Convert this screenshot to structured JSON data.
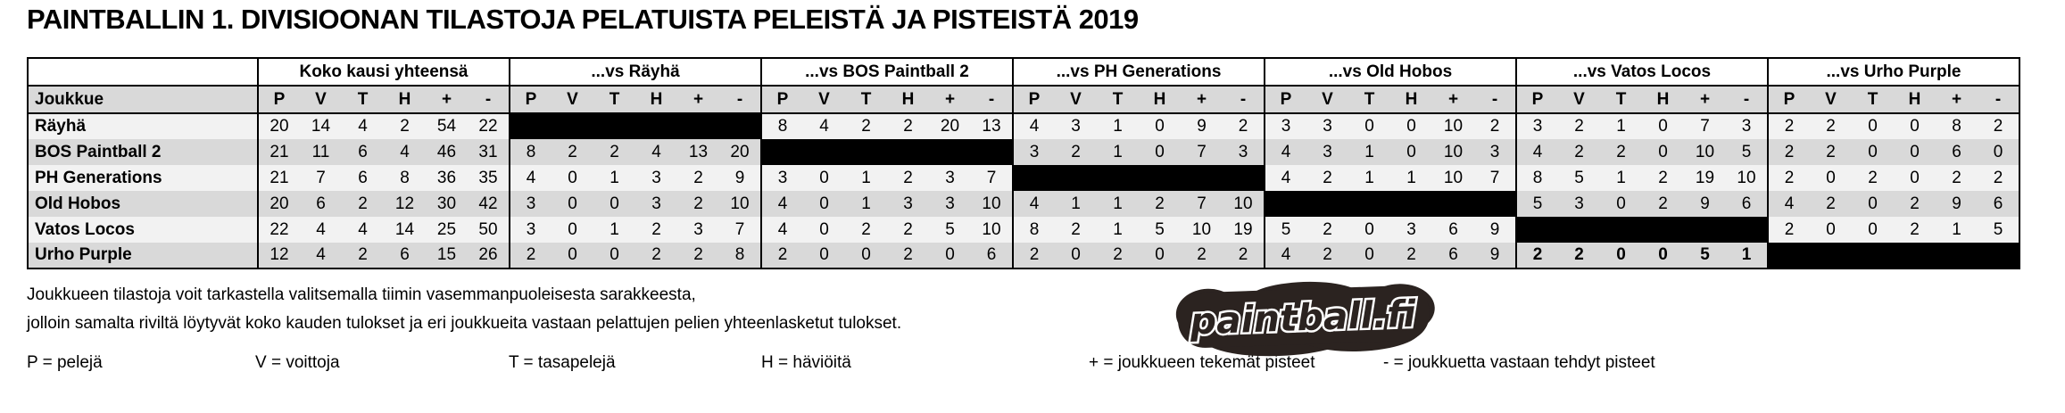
{
  "title": "PAINTBALLIN 1. DIVISIOONAN TILASTOJA PELATUISTA PELEISTÄ JA PISTEISTÄ 2019",
  "table": {
    "team_col_header": "Joukkue",
    "groups": [
      "Koko kausi yhteensä",
      "...vs Räyhä",
      "...vs BOS Paintball 2",
      "...vs PH Generations",
      "...vs Old Hobos",
      "...vs Vatos Locos",
      "...vs Urho Purple"
    ],
    "stat_cols": [
      "P",
      "V",
      "T",
      "H",
      "+",
      "-"
    ],
    "rows": [
      {
        "team": "Räyhä",
        "stats": [
          [
            20,
            14,
            4,
            2,
            54,
            22
          ],
          null,
          [
            8,
            4,
            2,
            2,
            20,
            13
          ],
          [
            4,
            3,
            1,
            0,
            9,
            2
          ],
          [
            3,
            3,
            0,
            0,
            10,
            2
          ],
          [
            3,
            2,
            1,
            0,
            7,
            3
          ],
          [
            2,
            2,
            0,
            0,
            8,
            2
          ]
        ],
        "bold_groups": []
      },
      {
        "team": "BOS Paintball 2",
        "stats": [
          [
            21,
            11,
            6,
            4,
            46,
            31
          ],
          [
            8,
            2,
            2,
            4,
            13,
            20
          ],
          null,
          [
            3,
            2,
            1,
            0,
            7,
            3
          ],
          [
            4,
            3,
            1,
            0,
            10,
            3
          ],
          [
            4,
            2,
            2,
            0,
            10,
            5
          ],
          [
            2,
            2,
            0,
            0,
            6,
            0
          ]
        ],
        "bold_groups": []
      },
      {
        "team": "PH Generations",
        "stats": [
          [
            21,
            7,
            6,
            8,
            36,
            35
          ],
          [
            4,
            0,
            1,
            3,
            2,
            9
          ],
          [
            3,
            0,
            1,
            2,
            3,
            7
          ],
          null,
          [
            4,
            2,
            1,
            1,
            10,
            7
          ],
          [
            8,
            5,
            1,
            2,
            19,
            10
          ],
          [
            2,
            0,
            2,
            0,
            2,
            2
          ]
        ],
        "bold_groups": []
      },
      {
        "team": "Old Hobos",
        "stats": [
          [
            20,
            6,
            2,
            12,
            30,
            42
          ],
          [
            3,
            0,
            0,
            3,
            2,
            10
          ],
          [
            4,
            0,
            1,
            3,
            3,
            10
          ],
          [
            4,
            1,
            1,
            2,
            7,
            10
          ],
          null,
          [
            5,
            3,
            0,
            2,
            9,
            6
          ],
          [
            4,
            2,
            0,
            2,
            9,
            6
          ]
        ],
        "bold_groups": []
      },
      {
        "team": "Vatos Locos",
        "stats": [
          [
            22,
            4,
            4,
            14,
            25,
            50
          ],
          [
            3,
            0,
            1,
            2,
            3,
            7
          ],
          [
            4,
            0,
            2,
            2,
            5,
            10
          ],
          [
            8,
            2,
            1,
            5,
            10,
            19
          ],
          [
            5,
            2,
            0,
            3,
            6,
            9
          ],
          null,
          [
            2,
            0,
            0,
            2,
            1,
            5
          ]
        ],
        "bold_groups": []
      },
      {
        "team": "Urho Purple",
        "stats": [
          [
            12,
            4,
            2,
            6,
            15,
            26
          ],
          [
            2,
            0,
            0,
            2,
            2,
            8
          ],
          [
            2,
            0,
            0,
            2,
            0,
            6
          ],
          [
            2,
            0,
            2,
            0,
            2,
            2
          ],
          [
            4,
            2,
            0,
            2,
            6,
            9
          ],
          [
            2,
            2,
            0,
            0,
            5,
            1
          ],
          null
        ],
        "bold_groups": [
          5
        ]
      }
    ]
  },
  "footer": {
    "note_line1": "Joukkueen tilastoja voit tarkastella valitsemalla tiimin vasemmanpuoleisesta sarakkeesta,",
    "note_line2": "jolloin samalta riviltä löytyvät koko kauden tulokset ja eri joukkueita vastaan pelattujen pelien yhteenlasketut tulokset.",
    "legend": [
      "P = pelejä",
      "V = voittoja",
      "T = tasapelejä",
      "H = häviöitä",
      "+ = joukkueen tekemät pisteet",
      "- = joukkuetta vastaan tehdyt pisteet"
    ]
  },
  "logo": {
    "text": "paintball.fi",
    "color": "#2b2320"
  },
  "colors": {
    "header_gray": "#d9d9d9",
    "row_light": "#f2f2f2",
    "row_dark": "#d9d9d9",
    "self_match_cell": "#000000"
  }
}
